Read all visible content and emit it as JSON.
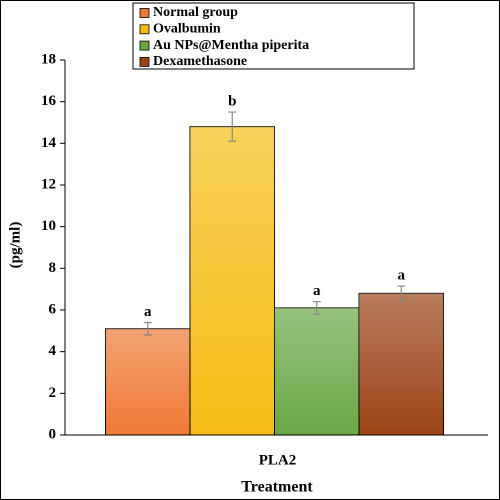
{
  "chart_data": {
    "type": "bar",
    "y_label": "(pg/ml)",
    "x_label": "Treatment",
    "categories": [
      "PLA2"
    ],
    "series": [
      {
        "name": "Normal group",
        "color": "#ee7a35",
        "values": [
          5.1
        ],
        "errors": [
          0.3
        ],
        "annotations": [
          "a"
        ]
      },
      {
        "name": "Ovalbumin",
        "color": "#f5bd14",
        "values": [
          14.8
        ],
        "errors": [
          0.7
        ],
        "annotations": [
          "b"
        ]
      },
      {
        "name": "Au NPs@Mentha piperita",
        "color": "#6aa846",
        "values": [
          6.1
        ],
        "errors": [
          0.3
        ],
        "annotations": [
          "a"
        ]
      },
      {
        "name": "Dexamethasone",
        "color": "#9c4417",
        "values": [
          6.8
        ],
        "errors": [
          0.35
        ],
        "annotations": [
          "a"
        ]
      }
    ],
    "ylim": [
      0,
      18
    ],
    "yticks": [
      0,
      2,
      4,
      6,
      8,
      10,
      12,
      14,
      16,
      18
    ]
  }
}
